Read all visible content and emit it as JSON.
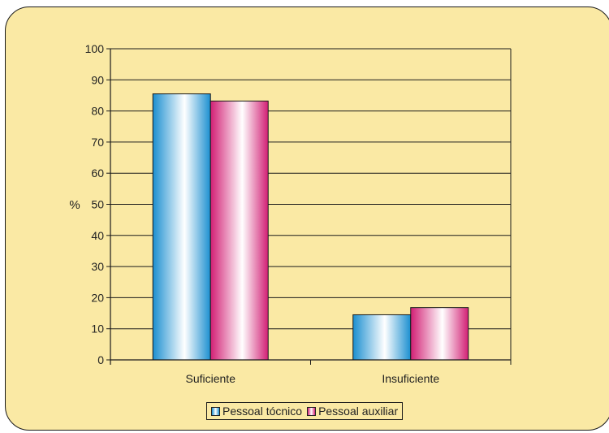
{
  "chart_data": {
    "type": "bar",
    "categories": [
      "Suficiente",
      "Insuficiente"
    ],
    "series": [
      {
        "name": "Pessoal tócnico",
        "values": [
          85.5,
          14.5
        ],
        "color": "#1f9fd8"
      },
      {
        "name": "Pessoal auxiliar",
        "values": [
          83.2,
          16.8
        ],
        "color": "#d8257a"
      }
    ],
    "ylabel": "%",
    "xlabel": "",
    "ylim": [
      0,
      100
    ],
    "yticks": [
      0,
      10,
      20,
      30,
      40,
      50,
      60,
      70,
      80,
      90,
      100
    ],
    "grid": true,
    "legend_position": "bottom"
  }
}
